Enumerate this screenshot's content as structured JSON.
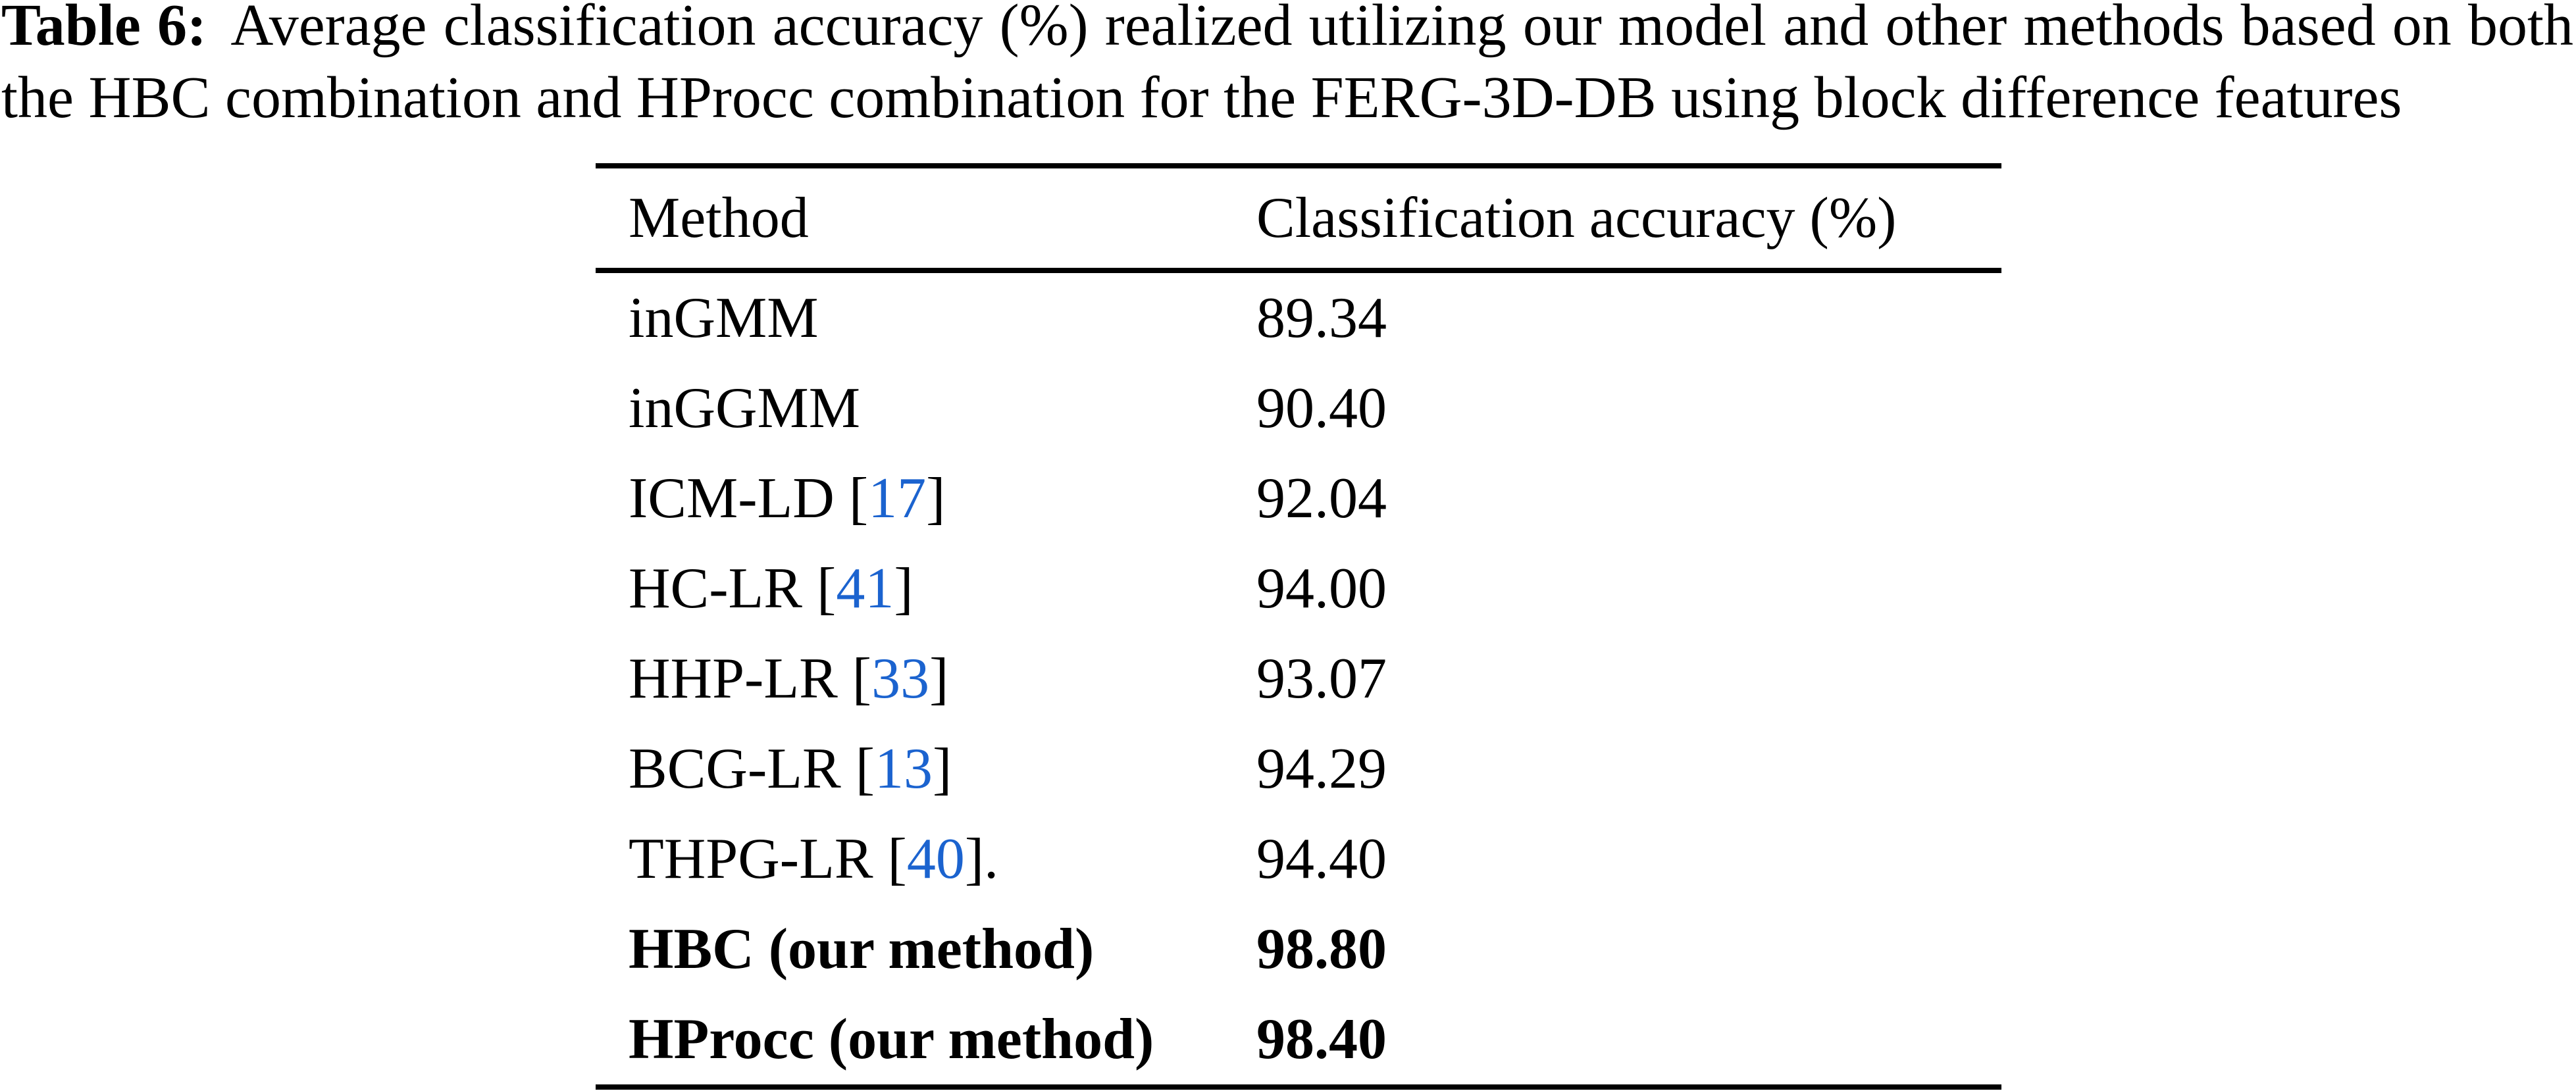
{
  "caption": {
    "label": "Table 6:",
    "line1_rest": " Average classification accuracy (%) realized utilizing our model and other methods based on both",
    "line2": "the HBC combination and HProcc combination for the FERG-3D-DB using block difference features"
  },
  "table": {
    "columns": {
      "method": "Method",
      "accuracy": "Classification accuracy (%)"
    },
    "rows": [
      {
        "pre": "inGMM",
        "ref": "",
        "post": "",
        "value": "89.34"
      },
      {
        "pre": "inGGMM",
        "ref": "",
        "post": "",
        "value": "90.40"
      },
      {
        "pre": "ICM-LD [",
        "ref": "17",
        "post": "]",
        "value": "92.04"
      },
      {
        "pre": "HC-LR [",
        "ref": "41",
        "post": "]",
        "value": "94.00"
      },
      {
        "pre": "HHP-LR [",
        "ref": "33",
        "post": "]",
        "value": "93.07"
      },
      {
        "pre": "BCG-LR [",
        "ref": "13",
        "post": "]",
        "value": "94.29"
      },
      {
        "pre": "THPG-LR [",
        "ref": "40",
        "post": "].",
        "value": "94.40"
      },
      {
        "pre": "HBC (our method)",
        "ref": "",
        "post": "",
        "value": "98.80"
      },
      {
        "pre": "HProcc (our method)",
        "ref": "",
        "post": "",
        "value": "98.40"
      }
    ],
    "text_color": "#000000",
    "citation_link_color": "#1b63cf"
  }
}
